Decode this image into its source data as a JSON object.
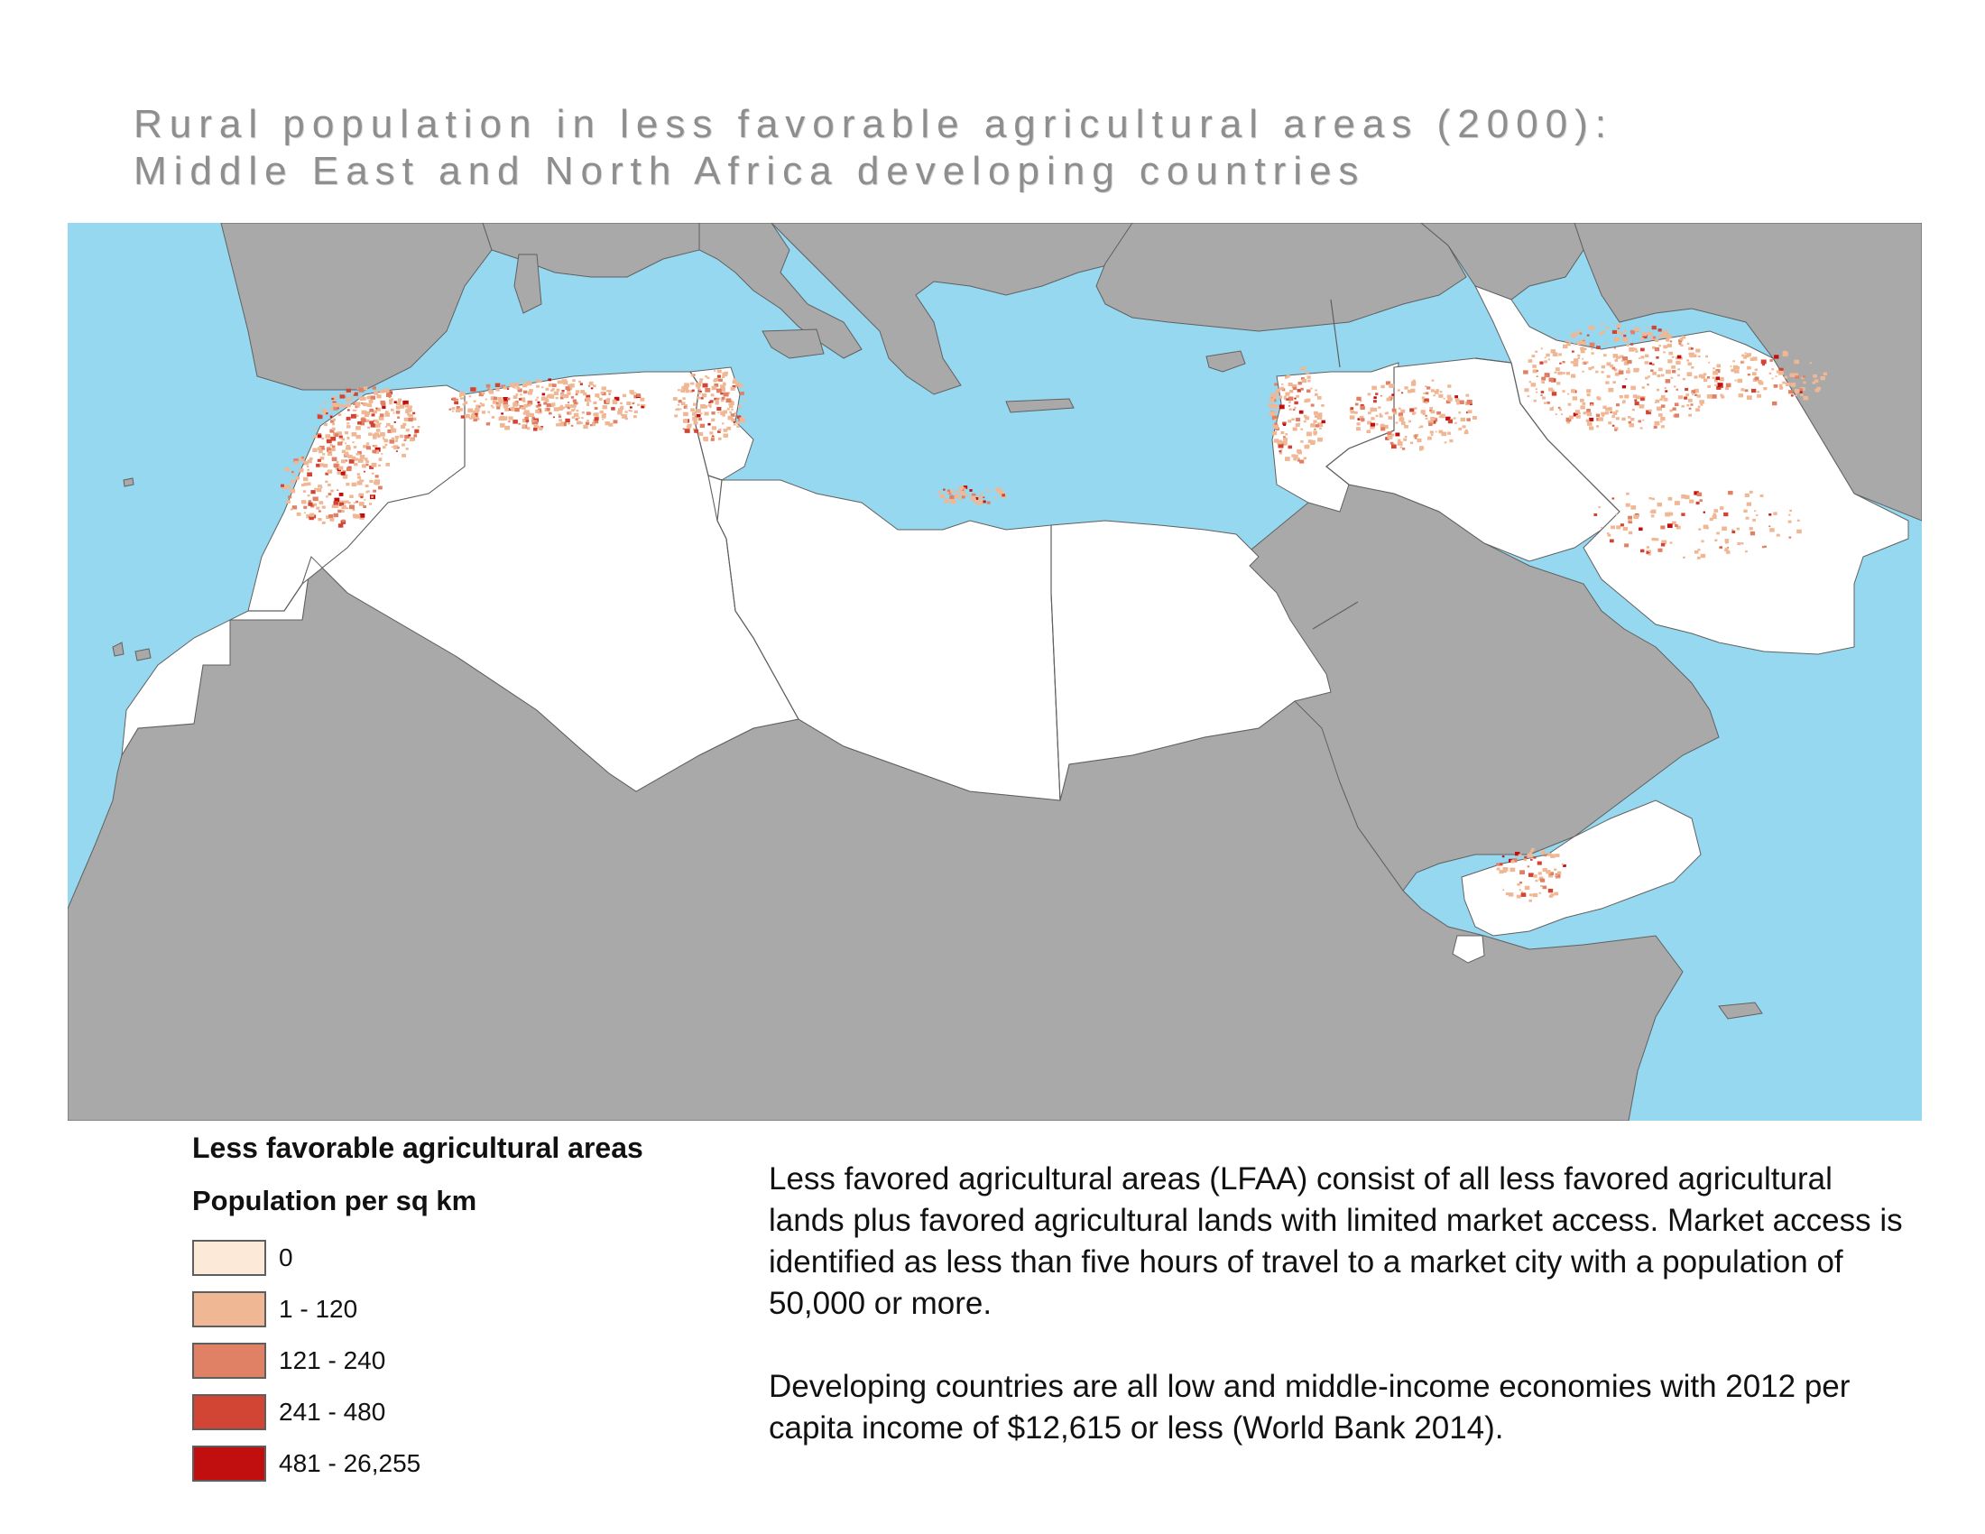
{
  "title": {
    "line1": "Rural population in less favorable agricultural areas (2000):",
    "line2": "Middle East and North Africa developing countries"
  },
  "legend": {
    "title": "Less favorable agricultural areas",
    "subtitle": "Population per sq km",
    "classes": [
      {
        "label": "0",
        "color": "#fde9d7"
      },
      {
        "label": "1 - 120",
        "color": "#f0b795"
      },
      {
        "label": "121 - 240",
        "color": "#e08064"
      },
      {
        "label": "241 - 480",
        "color": "#d24433"
      },
      {
        "label": "481 - 26,255",
        "color": "#c10f0f"
      }
    ]
  },
  "notes": [
    "Less favored agricultural areas (LFAA) consist of all less favored agricultural lands plus favored agricultural lands with limited market access. Market access is identified as less than five hours of travel to a market city with a population of 50,000 or more.",
    "Developing countries are all low and middle-income economies with 2012 per capita income of $12,615 or less (World Bank 2014)."
  ],
  "map": {
    "colors": {
      "water": "#96d8ef",
      "other_land": "#a9a9a9",
      "study_region": "#ffffff",
      "border": "#606060"
    }
  }
}
